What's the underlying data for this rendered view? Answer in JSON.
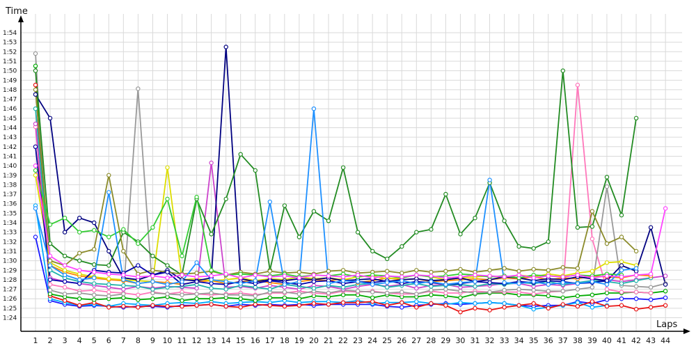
{
  "chart_data": {
    "type": "line",
    "title": "",
    "xlabel": "Laps",
    "ylabel": "Time",
    "grid": true,
    "legend": "none",
    "xlim": [
      1,
      44
    ],
    "ylim_seconds": [
      83,
      116
    ],
    "x": [
      1,
      2,
      3,
      4,
      5,
      6,
      7,
      8,
      9,
      10,
      11,
      12,
      13,
      14,
      15,
      16,
      17,
      18,
      19,
      20,
      21,
      22,
      23,
      24,
      25,
      26,
      27,
      28,
      29,
      30,
      31,
      32,
      33,
      34,
      35,
      36,
      37,
      38,
      39,
      40,
      41,
      42,
      43,
      44
    ],
    "y_ticks": [
      "1:24",
      "1:25",
      "1:26",
      "1:27",
      "1:28",
      "1:29",
      "1:30",
      "1:31",
      "1:32",
      "1:33",
      "1:34",
      "1:35",
      "1:36",
      "1:37",
      "1:38",
      "1:39",
      "1:40",
      "1:41",
      "1:42",
      "1:43",
      "1:44",
      "1:45",
      "1:46",
      "1:47",
      "1:48",
      "1:49",
      "1:50",
      "1:51",
      "1:52",
      "1:53",
      "1:54"
    ],
    "y_tick_seconds": [
      84,
      85,
      86,
      87,
      88,
      89,
      90,
      91,
      92,
      93,
      94,
      95,
      96,
      97,
      98,
      99,
      100,
      101,
      102,
      103,
      104,
      105,
      106,
      107,
      108,
      109,
      110,
      111,
      112,
      113,
      114
    ],
    "series": [
      {
        "color": "#1a1aff",
        "values": [
          92.5,
          85.8,
          85.4,
          85.2,
          85.3,
          85.2,
          85.1,
          85.2,
          85.2,
          85.1,
          85.3,
          85.3,
          85.4,
          85.2,
          85.4,
          85.3,
          85.4,
          85.3,
          85.4,
          85.3,
          85.4,
          85.4,
          85.4,
          85.4,
          85.2,
          85.1,
          85.3,
          85.4,
          85.5,
          85.4,
          85.5,
          85.6,
          85.5,
          85.3,
          85.2,
          85.3,
          85.3,
          85.7,
          85.5,
          85.9,
          86.0,
          86.0,
          85.9,
          86.1
        ]
      },
      {
        "color": "#00aaff",
        "values": [
          95.8,
          86.0,
          85.6,
          85.3,
          85.4,
          85.2,
          85.5,
          85.4,
          85.3,
          85.5,
          85.6,
          85.5,
          85.7,
          85.5,
          85.6,
          85.7,
          85.6,
          85.8,
          85.6,
          85.7,
          85.7,
          85.6,
          85.8,
          85.5,
          85.6,
          85.6,
          85.7,
          85.5,
          85.4,
          85.6,
          85.5,
          85.6,
          85.5,
          85.3,
          84.9,
          85.1,
          85.3,
          85.6,
          85.1,
          85.3,
          null,
          null,
          null,
          null
        ]
      },
      {
        "color": "#e81212",
        "values": [
          108.5,
          86.3,
          85.8,
          85.3,
          85.6,
          85.1,
          85.2,
          85.1,
          85.3,
          85.2,
          85.2,
          85.3,
          85.4,
          85.2,
          85.1,
          85.4,
          85.3,
          85.2,
          85.3,
          85.5,
          85.4,
          85.6,
          85.6,
          85.7,
          85.3,
          85.6,
          85.1,
          85.5,
          85.3,
          84.6,
          85.0,
          84.8,
          85.1,
          85.3,
          85.5,
          85.0,
          85.4,
          85.2,
          85.7,
          85.2,
          85.3,
          84.9,
          85.1,
          85.3
        ]
      },
      {
        "color": "#00aa00",
        "values": [
          110.5,
          86.5,
          86.2,
          86.0,
          85.9,
          86.0,
          86.1,
          85.9,
          86.0,
          86.2,
          85.8,
          86.0,
          86.0,
          86.1,
          86.0,
          85.8,
          86.1,
          86.1,
          86.0,
          86.3,
          86.2,
          86.4,
          86.4,
          86.1,
          86.4,
          86.2,
          86.2,
          86.4,
          86.3,
          86.1,
          86.5,
          86.6,
          86.6,
          86.4,
          86.4,
          86.3,
          86.1,
          86.3,
          86.4,
          86.6,
          86.6,
          86.7,
          86.6,
          86.8
        ]
      },
      {
        "color": "#ff77bb",
        "values": [
          104.1,
          87.5,
          87.2,
          86.8,
          86.9,
          86.7,
          86.6,
          86.4,
          86.7,
          86.5,
          86.7,
          86.5,
          86.4,
          86.5,
          86.6,
          86.4,
          86.6,
          86.6,
          86.8,
          86.6,
          86.5,
          86.8,
          86.7,
          86.8,
          86.6,
          86.5,
          86.5,
          86.8,
          86.6,
          86.6,
          86.8,
          86.7,
          86.7,
          86.7,
          86.5,
          86.7,
          86.8,
          108.5,
          92.3,
          87.0,
          86.7,
          86.7,
          86.6,
          null
        ]
      },
      {
        "color": "#999999",
        "values": [
          111.8,
          86.9,
          86.5,
          86.6,
          86.4,
          86.3,
          86.5,
          108.1,
          86.6,
          86.5,
          86.4,
          86.5,
          86.6,
          86.4,
          86.4,
          86.3,
          86.7,
          86.7,
          86.5,
          86.8,
          86.6,
          86.9,
          86.8,
          86.7,
          86.6,
          86.7,
          86.5,
          86.9,
          87.0,
          86.8,
          86.6,
          86.7,
          86.9,
          87.0,
          86.9,
          86.8,
          86.8,
          87.0,
          87.2,
          97.8,
          87.4,
          87.3,
          87.2,
          87.6
        ]
      },
      {
        "color": "#cc44cc",
        "values": [
          104.4,
          88.2,
          87.8,
          87.6,
          87.4,
          87.2,
          87.0,
          87.3,
          87.1,
          87.3,
          87.2,
          87.1,
          100.3,
          87.2,
          87.3,
          87.1,
          87.4,
          87.2,
          87.0,
          87.4,
          87.3,
          87.0,
          87.3,
          87.5,
          87.3,
          87.5,
          87.1,
          87.4,
          87.5,
          87.2,
          87.3,
          87.4,
          87.6,
          87.6,
          87.3,
          87.5,
          87.4,
          87.6,
          87.8,
          88.0,
          87.8,
          88.0,
          88.2,
          88.4
        ]
      },
      {
        "color": "#20b2aa",
        "values": [
          106.0,
          89.0,
          88.2,
          87.8,
          87.6,
          87.5,
          87.4,
          87.3,
          87.0,
          87.2,
          87.3,
          87.5,
          87.1,
          87.0,
          87.4,
          87.2,
          87.0,
          87.5,
          87.3,
          87.1,
          87.4,
          87.2,
          87.5,
          87.6,
          87.2,
          87.4,
          87.6,
          87.3,
          87.4,
          87.5,
          87.3,
          87.6,
          87.5,
          87.7,
          87.6,
          87.8,
          87.5,
          87.7,
          87.9,
          87.8,
          87.6,
          87.9,
          88.2,
          null
        ]
      },
      {
        "color": "#ff8800",
        "values": [
          102.0,
          89.5,
          88.8,
          88.4,
          88.2,
          88.0,
          87.9,
          87.6,
          87.8,
          87.7,
          87.5,
          87.8,
          87.9,
          87.6,
          87.8,
          87.9,
          87.7,
          87.5,
          87.8,
          88.0,
          87.9,
          88.1,
          87.7,
          87.9,
          88.2,
          88.0,
          88.1,
          87.8,
          87.9,
          88.0,
          88.1,
          88.0,
          88.2,
          88.1,
          88.3,
          88.0,
          88.2,
          88.1,
          88.4,
          88.3,
          88.2,
          88.5,
          88.4,
          null
        ]
      },
      {
        "color": "#dddd00",
        "values": [
          99.0,
          89.8,
          89.0,
          88.6,
          88.3,
          88.1,
          88.0,
          87.9,
          87.8,
          99.8,
          88.0,
          88.1,
          87.9,
          88.0,
          88.2,
          87.9,
          88.1,
          88.0,
          88.3,
          88.1,
          88.2,
          88.0,
          88.3,
          88.4,
          88.1,
          88.2,
          88.5,
          88.3,
          88.0,
          88.2,
          88.3,
          88.4,
          88.2,
          88.5,
          88.3,
          88.6,
          88.4,
          88.7,
          88.9,
          89.8,
          89.9,
          89.5,
          null,
          null
        ]
      },
      {
        "color": "#000080",
        "values": [
          107.5,
          105.0,
          93.0,
          94.5,
          94.0,
          91.0,
          88.2,
          88.0,
          88.5,
          89.0,
          88.0,
          87.9,
          88.2,
          112.5,
          88.1,
          87.8,
          88.0,
          87.9,
          88.1,
          88.0,
          88.2,
          87.9,
          88.0,
          88.1,
          87.8,
          88.0,
          88.1,
          87.9,
          88.0,
          88.2,
          87.8,
          88.0,
          88.3,
          88.2,
          87.9,
          88.1,
          88.0,
          88.3,
          88.1,
          87.9,
          89.5,
          88.9,
          93.5,
          87.5
        ]
      },
      {
        "color": "#228b22",
        "values": [
          110.0,
          91.8,
          90.5,
          90.0,
          89.6,
          89.5,
          93.0,
          92.0,
          90.5,
          89.5,
          88.5,
          96.5,
          92.8,
          96.5,
          101.2,
          99.5,
          89.0,
          95.8,
          92.5,
          95.2,
          94.2,
          99.8,
          93.0,
          91.0,
          90.2,
          91.5,
          93.0,
          93.3,
          97.0,
          92.8,
          94.5,
          98.2,
          94.2,
          91.5,
          91.3,
          92.0,
          110.0,
          93.5,
          93.6,
          98.8,
          94.8,
          105.0,
          null,
          null
        ]
      },
      {
        "color": "#8b8b2a",
        "values": [
          108.0,
          90.0,
          89.5,
          90.8,
          91.2,
          99.0,
          91.0,
          88.6,
          89.0,
          88.8,
          88.6,
          88.7,
          88.9,
          88.5,
          88.8,
          88.6,
          88.9,
          88.7,
          88.8,
          88.6,
          88.9,
          89.0,
          88.7,
          88.8,
          88.9,
          88.7,
          89.0,
          88.8,
          88.9,
          89.1,
          88.8,
          89.0,
          89.2,
          88.9,
          89.1,
          89.0,
          89.3,
          89.2,
          95.2,
          91.8,
          92.5,
          91.0,
          null,
          null
        ]
      },
      {
        "color": "#0000aa",
        "values": [
          102.0,
          88.0,
          87.8,
          87.6,
          89.0,
          88.8,
          88.7,
          89.5,
          88.5,
          88.8,
          87.5,
          87.8,
          87.6,
          87.5,
          87.8,
          87.6,
          87.9,
          87.7,
          87.5,
          87.8,
          87.9,
          87.6,
          87.8,
          87.7,
          87.9,
          87.6,
          87.8,
          87.7,
          87.5,
          87.6,
          87.8,
          87.7,
          87.6,
          87.8,
          87.7,
          87.9,
          87.8,
          87.6,
          87.7,
          87.9,
          null,
          null,
          null,
          null
        ]
      },
      {
        "color": "#33cc33",
        "values": [
          99.5,
          93.8,
          94.5,
          93.0,
          93.2,
          92.5,
          93.3,
          91.8,
          93.5,
          96.5,
          90.5,
          96.7,
          89.0,
          88.5,
          88.6,
          88.5,
          88.4,
          88.6,
          88.3,
          88.5,
          88.4,
          88.6,
          88.3,
          88.5,
          88.4,
          88.2,
          88.5,
          88.3,
          88.4,
          88.6,
          88.5,
          88.3,
          88.4,
          88.2,
          88.5,
          88.4,
          88.3,
          88.5,
          88.4,
          88.6,
          88.5,
          null,
          null,
          null
        ]
      },
      {
        "color": "#1e90ff",
        "values": [
          95.5,
          89.5,
          88.5,
          88.0,
          88.2,
          97.2,
          88.0,
          87.6,
          87.8,
          87.5,
          87.8,
          89.8,
          88.0,
          87.8,
          87.6,
          87.9,
          96.2,
          87.5,
          87.8,
          106.0,
          87.6,
          87.9,
          87.8,
          87.5,
          87.7,
          87.9,
          87.6,
          87.8,
          87.5,
          87.7,
          87.8,
          98.5,
          87.7,
          87.6,
          87.8,
          87.5,
          87.7,
          87.6,
          87.8,
          87.5,
          89.0,
          89.2,
          null,
          null
        ]
      },
      {
        "color": "#ff44ff",
        "values": [
          100.0,
          90.5,
          89.5,
          89.0,
          88.8,
          88.6,
          88.5,
          88.3,
          88.4,
          88.2,
          88.5,
          88.3,
          88.4,
          88.6,
          88.2,
          88.5,
          88.3,
          88.4,
          88.2,
          88.5,
          88.4,
          88.3,
          88.5,
          88.2,
          88.4,
          88.3,
          88.5,
          88.4,
          88.2,
          88.3,
          88.5,
          88.4,
          88.3,
          88.5,
          88.2,
          88.4,
          88.3,
          88.5,
          88.2,
          88.4,
          88.3,
          88.5,
          88.6,
          95.5
        ]
      }
    ]
  }
}
